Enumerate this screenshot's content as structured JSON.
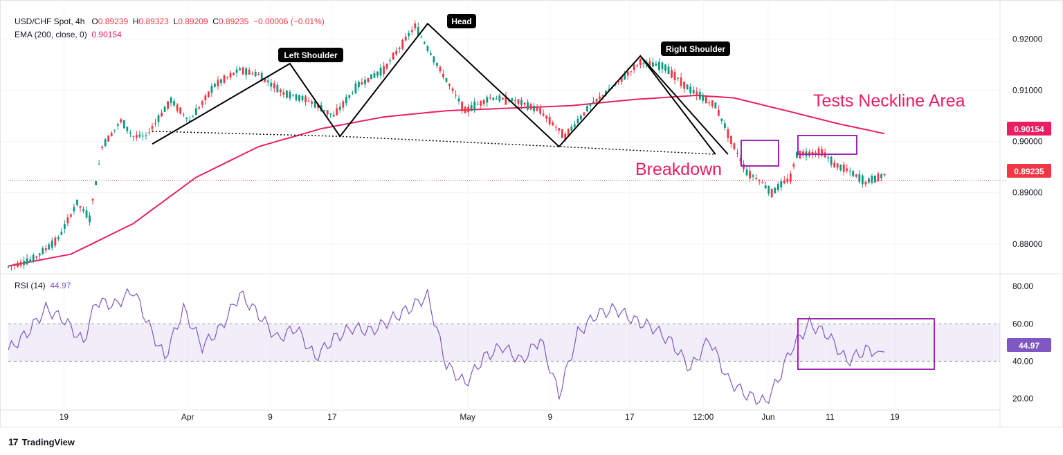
{
  "header": {
    "symbol": "USD/CHF Spot, 4h",
    "o_label": "O",
    "o_val": "0.89239",
    "h_label": "H",
    "h_val": "0.89323",
    "l_label": "L",
    "l_val": "0.89209",
    "c_label": "C",
    "c_val": "0.89235",
    "change": "−0.00006 (−0.01%)",
    "ema_label": "EMA (200, close, 0)",
    "ema_val": "0.90154",
    "rsi_label": "RSI (14)",
    "rsi_val": "44.97"
  },
  "annotations": {
    "head": "Head",
    "left_shoulder": "Left Shoulder",
    "right_shoulder": "Right Shoulder",
    "tests_neckline": "Tests Neckline Area",
    "breakdown": "Breakdown"
  },
  "footer": {
    "brand": "TradingView",
    "logo": "17"
  },
  "colors": {
    "up": "#089981",
    "down": "#f23645",
    "ema": "#e91e63",
    "rsi": "#7e57c2",
    "text": "#131722"
  },
  "chart_data": [
    {
      "type": "candlestick",
      "title": "USD/CHF Spot, 4h",
      "ylim": [
        0.8743,
        0.926
      ],
      "y_ticks": [
        "0.92000",
        "0.91000",
        "0.90000",
        "0.89000",
        "0.88000"
      ],
      "x_ticks": [
        "19",
        "Apr",
        "9",
        "17",
        "May",
        "9",
        "17",
        "12:00",
        "Jun",
        "11",
        "19"
      ],
      "last_price": "0.89235",
      "ema_last": "0.90154",
      "price_path": [
        [
          0,
          0.8755
        ],
        [
          8,
          0.877
        ],
        [
          16,
          0.881
        ],
        [
          22,
          0.888
        ],
        [
          26,
          0.885
        ],
        [
          30,
          0.899
        ],
        [
          36,
          0.904
        ],
        [
          40,
          0.901
        ],
        [
          44,
          0.901
        ],
        [
          52,
          0.908
        ],
        [
          58,
          0.904
        ],
        [
          66,
          0.911
        ],
        [
          74,
          0.914
        ],
        [
          80,
          0.913
        ],
        [
          88,
          0.9095
        ],
        [
          96,
          0.908
        ],
        [
          104,
          0.905
        ],
        [
          112,
          0.911
        ],
        [
          120,
          0.914
        ],
        [
          130,
          0.9225
        ],
        [
          138,
          0.914
        ],
        [
          146,
          0.906
        ],
        [
          154,
          0.9085
        ],
        [
          162,
          0.908
        ],
        [
          170,
          0.906
        ],
        [
          178,
          0.901
        ],
        [
          186,
          0.907
        ],
        [
          194,
          0.911
        ],
        [
          202,
          0.9155
        ],
        [
          210,
          0.9145
        ],
        [
          218,
          0.91
        ],
        [
          226,
          0.907
        ],
        [
          232,
          0.899
        ],
        [
          236,
          0.894
        ],
        [
          240,
          0.8925
        ],
        [
          244,
          0.89
        ],
        [
          250,
          0.893
        ],
        [
          252,
          0.8975
        ],
        [
          260,
          0.898
        ],
        [
          264,
          0.8955
        ],
        [
          268,
          0.8945
        ],
        [
          274,
          0.892
        ],
        [
          280,
          0.8935
        ]
      ],
      "ema_path": [
        [
          0,
          0.8757
        ],
        [
          20,
          0.878
        ],
        [
          40,
          0.884
        ],
        [
          60,
          0.893
        ],
        [
          80,
          0.899
        ],
        [
          100,
          0.9025
        ],
        [
          120,
          0.9048
        ],
        [
          140,
          0.906
        ],
        [
          160,
          0.9065
        ],
        [
          180,
          0.907
        ],
        [
          200,
          0.9082
        ],
        [
          220,
          0.909
        ],
        [
          232,
          0.9085
        ],
        [
          250,
          0.9058
        ],
        [
          265,
          0.9035
        ],
        [
          280,
          0.90154
        ]
      ],
      "neckline": [
        [
          46,
          0.902
        ],
        [
          106,
          0.901
        ],
        [
          176,
          0.899
        ],
        [
          226,
          0.8975
        ]
      ],
      "pattern_lines": [
        [
          [
            46,
            0.8995
          ],
          [
            90,
            0.9152
          ],
          [
            106,
            0.901
          ],
          [
            134,
            0.923
          ],
          [
            176,
            0.899
          ],
          [
            202,
            0.9167
          ],
          [
            226,
            0.8975
          ]
        ]
      ]
    },
    {
      "type": "line",
      "title": "RSI (14)",
      "ylim": [
        15,
        86
      ],
      "y_ticks": [
        "80.00",
        "60.00",
        "40.00",
        "20.00"
      ],
      "band": [
        40,
        60
      ],
      "last_value": "44.97",
      "values": [
        [
          0,
          46
        ],
        [
          6,
          55
        ],
        [
          12,
          68
        ],
        [
          18,
          62
        ],
        [
          24,
          50
        ],
        [
          28,
          72
        ],
        [
          34,
          70
        ],
        [
          40,
          78
        ],
        [
          46,
          55
        ],
        [
          50,
          42
        ],
        [
          56,
          68
        ],
        [
          62,
          48
        ],
        [
          68,
          58
        ],
        [
          74,
          76
        ],
        [
          80,
          65
        ],
        [
          86,
          52
        ],
        [
          92,
          58
        ],
        [
          98,
          42
        ],
        [
          104,
          52
        ],
        [
          110,
          58
        ],
        [
          116,
          56
        ],
        [
          122,
          62
        ],
        [
          128,
          68
        ],
        [
          134,
          75
        ],
        [
          140,
          38
        ],
        [
          146,
          28
        ],
        [
          152,
          42
        ],
        [
          158,
          48
        ],
        [
          164,
          40
        ],
        [
          170,
          52
        ],
        [
          176,
          22
        ],
        [
          182,
          55
        ],
        [
          188,
          65
        ],
        [
          194,
          68
        ],
        [
          200,
          62
        ],
        [
          206,
          58
        ],
        [
          212,
          50
        ],
        [
          218,
          36
        ],
        [
          224,
          52
        ],
        [
          230,
          30
        ],
        [
          236,
          22
        ],
        [
          242,
          18
        ],
        [
          246,
          30
        ],
        [
          250,
          46
        ],
        [
          256,
          60
        ],
        [
          262,
          54
        ],
        [
          268,
          40
        ],
        [
          274,
          46
        ],
        [
          280,
          44.97
        ]
      ]
    }
  ]
}
